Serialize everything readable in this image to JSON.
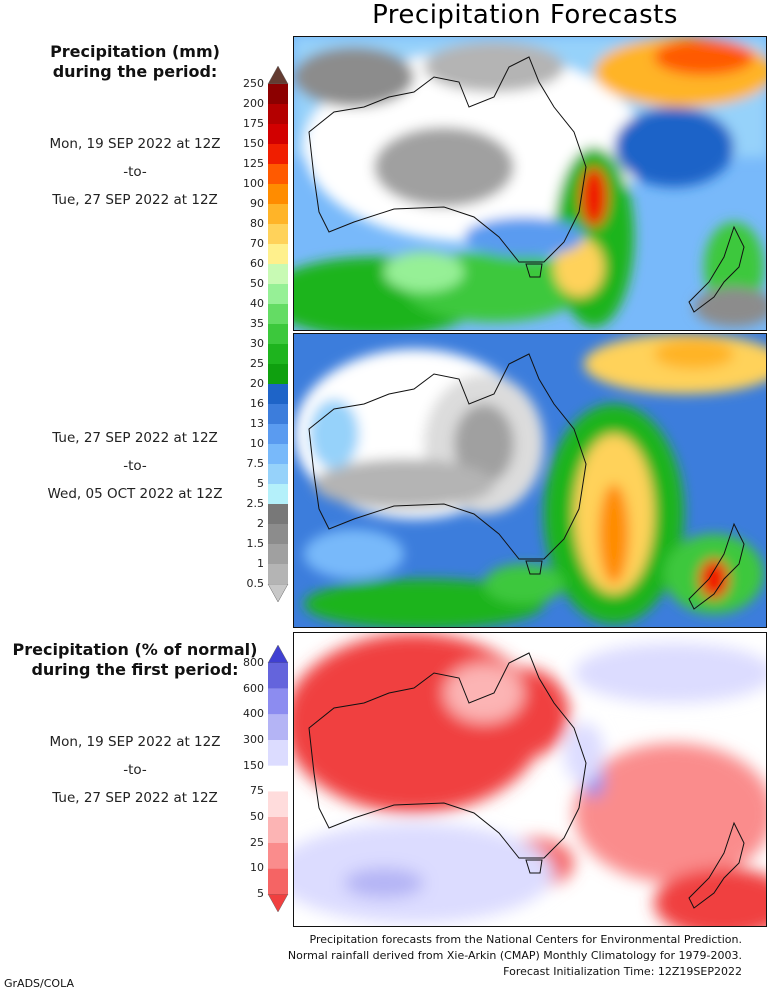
{
  "title": "Precipitation Forecasts",
  "amount_header": {
    "line1": "Precipitation (mm)",
    "line2": "during the period:"
  },
  "period1": {
    "from": "Mon, 19 SEP 2022 at 12Z",
    "sep": "-to-",
    "to": "Tue, 27 SEP 2022 at 12Z"
  },
  "period2": {
    "from": "Tue, 27 SEP 2022 at 12Z",
    "sep": "-to-",
    "to": "Wed, 05 OCT 2022 at 12Z"
  },
  "percent_header": {
    "line1": "Precipitation (% of normal)",
    "line2": "during the first period:"
  },
  "period3": {
    "from": "Mon, 19 SEP 2022 at 12Z",
    "sep": "-to-",
    "to": "Tue, 27 SEP 2022 at 12Z"
  },
  "mm_scale": {
    "levels": [
      "0.5",
      "1",
      "1.5",
      "2",
      "2.5",
      "5",
      "7.5",
      "10",
      "13",
      "16",
      "20",
      "25",
      "30",
      "35",
      "40",
      "50",
      "60",
      "70",
      "80",
      "90",
      "100",
      "125",
      "150",
      "175",
      "200",
      "250"
    ],
    "colors": [
      "#c8c8c8",
      "#b4b4b4",
      "#a0a0a0",
      "#8c8c8c",
      "#787878",
      "#b4f0fa",
      "#96d2fa",
      "#78b9fa",
      "#5a9bf0",
      "#3c7ddc",
      "#1e64c8",
      "#0fa00f",
      "#1eb41e",
      "#3cc83c",
      "#64dc64",
      "#96f096",
      "#c8fab4",
      "#fff08c",
      "#ffd25a",
      "#ffb428",
      "#ff8c00",
      "#ff5a00",
      "#f01e00",
      "#d20000",
      "#b40000",
      "#8c0000",
      "#643c32"
    ]
  },
  "pct_scale": {
    "levels": [
      "5",
      "10",
      "25",
      "50",
      "75",
      "150",
      "300",
      "400",
      "600",
      "800"
    ],
    "colors": [
      "#f04040",
      "#f56464",
      "#fa8c8c",
      "#fcb4b4",
      "#ffdcdc",
      "#ffffff",
      "#dcdcff",
      "#b4b4f5",
      "#8c8cf0",
      "#6464dc",
      "#4040d2"
    ]
  },
  "footer": {
    "line1": "Precipitation forecasts from the National Centers for Environmental Prediction.",
    "line2": "Normal rainfall derived from Xie-Arkin (CMAP) Monthly Climatology for 1979-2003.",
    "line3": "Forecast Initialization Time: 12Z19SEP2022"
  },
  "credit": "GrADS/COLA"
}
